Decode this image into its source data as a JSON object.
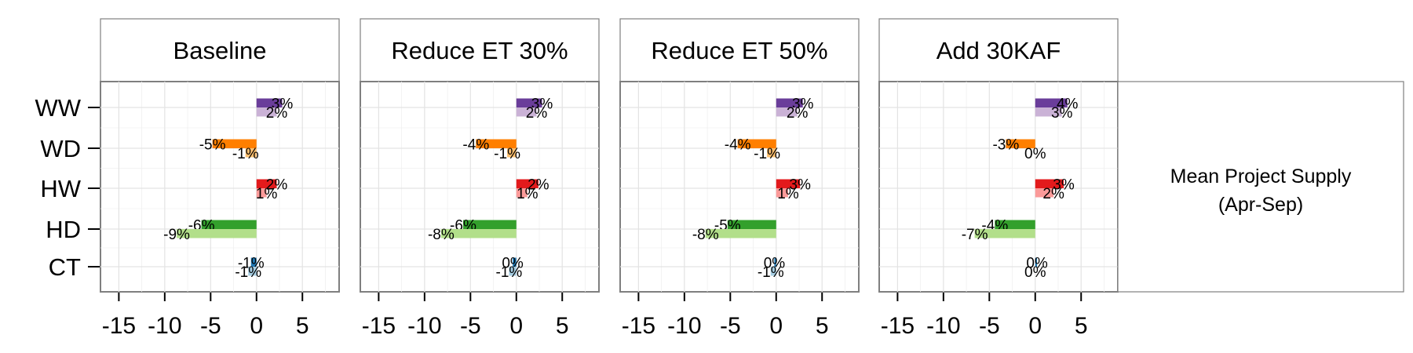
{
  "chart_data": {
    "type": "bar",
    "orientation": "horizontal",
    "facets": [
      "Baseline",
      "Reduce ET 30%",
      "Reduce ET 50%",
      "Add 30KAF"
    ],
    "categories": [
      "WW",
      "WD",
      "HW",
      "HD",
      "CT"
    ],
    "xlim": [
      -17,
      9
    ],
    "x_ticks": [
      -15,
      -10,
      -5,
      0,
      5
    ],
    "x_tick_labels": [
      "-15",
      "-10",
      "-5",
      "0",
      "5"
    ],
    "grid": true,
    "right_label": [
      "Mean Project Supply",
      "(Apr-Sep)"
    ],
    "colors": {
      "WW": [
        "#6a3d9a",
        "#cab2d6"
      ],
      "WD": [
        "#ff7f00",
        "#fdbf6f"
      ],
      "HW": [
        "#e31a1c",
        "#fb9a99"
      ],
      "HD": [
        "#33a02c",
        "#b2df8a"
      ],
      "CT": [
        "#1f78b4",
        "#a6cee3"
      ]
    },
    "panels": [
      {
        "name": "Baseline",
        "bars": [
          {
            "category": "WW",
            "dark": 2.8,
            "dark_label": "3%",
            "light": 2.2,
            "light_label": "2%"
          },
          {
            "category": "WD",
            "dark": -4.8,
            "dark_label": "-5%",
            "light": -1.2,
            "light_label": "-1%"
          },
          {
            "category": "HW",
            "dark": 2.2,
            "dark_label": "2%",
            "light": 1.1,
            "light_label": "1%"
          },
          {
            "category": "HD",
            "dark": -6.0,
            "dark_label": "-6%",
            "light": -8.7,
            "light_label": "-9%"
          },
          {
            "category": "CT",
            "dark": -0.6,
            "dark_label": "-1%",
            "light": -0.9,
            "light_label": "-1%"
          }
        ]
      },
      {
        "name": "Reduce ET 30%",
        "bars": [
          {
            "category": "WW",
            "dark": 2.8,
            "dark_label": "3%",
            "light": 2.2,
            "light_label": "2%"
          },
          {
            "category": "WD",
            "dark": -4.4,
            "dark_label": "-4%",
            "light": -1.0,
            "light_label": "-1%"
          },
          {
            "category": "HW",
            "dark": 2.4,
            "dark_label": "2%",
            "light": 1.2,
            "light_label": "1%"
          },
          {
            "category": "HD",
            "dark": -5.8,
            "dark_label": "-6%",
            "light": -8.2,
            "light_label": "-8%"
          },
          {
            "category": "CT",
            "dark": -0.4,
            "dark_label": "0%",
            "light": -0.8,
            "light_label": "-1%"
          }
        ]
      },
      {
        "name": "Reduce ET 50%",
        "bars": [
          {
            "category": "WW",
            "dark": 2.9,
            "dark_label": "3%",
            "light": 2.3,
            "light_label": "2%"
          },
          {
            "category": "WD",
            "dark": -4.2,
            "dark_label": "-4%",
            "light": -1.0,
            "light_label": "-1%"
          },
          {
            "category": "HW",
            "dark": 2.6,
            "dark_label": "3%",
            "light": 1.3,
            "light_label": "1%"
          },
          {
            "category": "HD",
            "dark": -5.3,
            "dark_label": "-5%",
            "light": -7.7,
            "light_label": "-8%"
          },
          {
            "category": "CT",
            "dark": -0.2,
            "dark_label": "0%",
            "light": -0.6,
            "light_label": "-1%"
          }
        ]
      },
      {
        "name": "Add 30KAF",
        "bars": [
          {
            "category": "WW",
            "dark": 3.5,
            "dark_label": "4%",
            "light": 2.9,
            "light_label": "3%"
          },
          {
            "category": "WD",
            "dark": -3.2,
            "dark_label": "-3%",
            "light": 0.0,
            "light_label": "0%"
          },
          {
            "category": "HW",
            "dark": 3.1,
            "dark_label": "3%",
            "light": 2.0,
            "light_label": "2%"
          },
          {
            "category": "HD",
            "dark": -4.4,
            "dark_label": "-4%",
            "light": -6.6,
            "light_label": "-7%"
          },
          {
            "category": "CT",
            "dark": 0.2,
            "dark_label": "0%",
            "light": 0.0,
            "light_label": "0%"
          }
        ]
      }
    ]
  }
}
